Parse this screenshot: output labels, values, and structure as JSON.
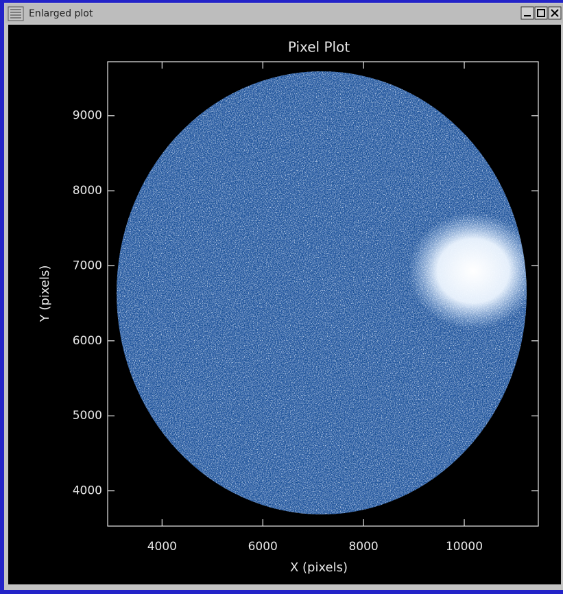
{
  "window": {
    "title": "Enlarged plot"
  },
  "chart_data": {
    "type": "image",
    "title": "Pixel Plot",
    "x_label": "X (pixels)",
    "y_label": "Y (pixels)",
    "xlim": [
      2920,
      11470
    ],
    "ylim": [
      3530,
      9720
    ],
    "xticks": [
      4000,
      6000,
      8000,
      10000
    ],
    "yticks": [
      4000,
      5000,
      6000,
      7000,
      8000,
      9000
    ]
  }
}
